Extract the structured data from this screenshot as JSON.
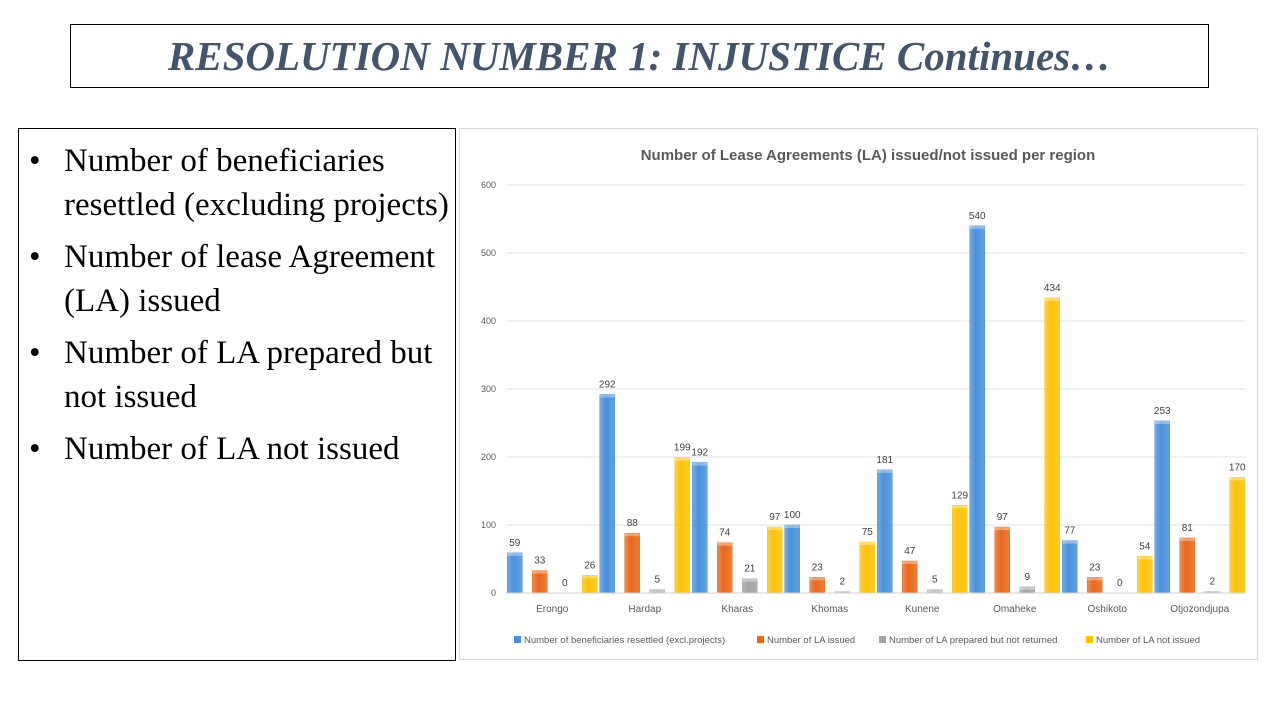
{
  "slide": {
    "title": "RESOLUTION NUMBER 1: INJUSTICE Continues…",
    "bullets": [
      "Number of beneficiaries resettled (excluding projects)",
      "Number of lease Agreement (LA) issued",
      "Number of LA prepared but not issued",
      "Number of LA not issued"
    ],
    "bullet_symbol": "•"
  },
  "chart_data": {
    "type": "bar",
    "title": "Number of  Lease Agreements (LA) issued/not issued per region",
    "categories": [
      "Erongo",
      "Hardap",
      "Kharas",
      "Khomas",
      "Kunene",
      "Omaheke",
      "Oshikoto",
      "Otjozondjupa"
    ],
    "series": [
      {
        "name": "Number of beneficiaries resettled (excl.projects)",
        "color": "#4a90d9",
        "values": [
          59,
          292,
          192,
          100,
          181,
          540,
          77,
          253
        ]
      },
      {
        "name": "Number of LA issued",
        "color": "#e8681c",
        "values": [
          33,
          88,
          74,
          23,
          47,
          97,
          23,
          81
        ]
      },
      {
        "name": "Number of LA prepared but not returned",
        "color": "#a3a3a3",
        "values": [
          0,
          5,
          21,
          2,
          5,
          9,
          0,
          2
        ]
      },
      {
        "name": "Number of LA not issued",
        "color": "#fcc20a",
        "values": [
          26,
          199,
          97,
          75,
          129,
          434,
          54,
          170
        ]
      }
    ],
    "ylim": [
      0,
      600
    ],
    "yticks": [
      0,
      100,
      200,
      300,
      400,
      500,
      600
    ],
    "grid": true,
    "legend_position": "bottom",
    "data_labels": true
  }
}
